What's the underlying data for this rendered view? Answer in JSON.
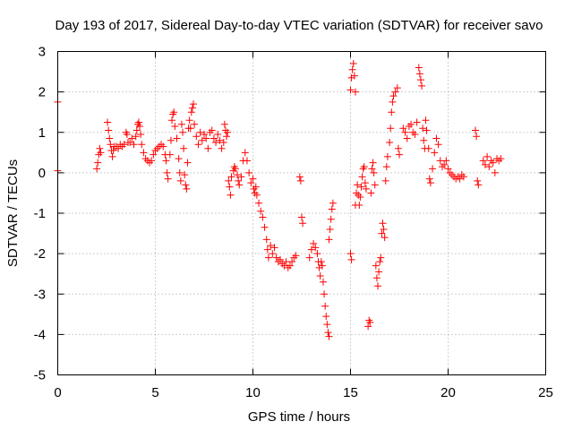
{
  "chart_data": {
    "type": "scatter",
    "title": "Day 193 of 2017, Sidereal Day-to-day VTEC variation (SDTVAR) for receiver savo",
    "xlabel": "GPS time / hours",
    "ylabel": "SDTVAR / TECUs",
    "xlim": [
      0,
      25
    ],
    "ylim": [
      -5,
      3
    ],
    "xticks": [
      0,
      5,
      10,
      15,
      20,
      25
    ],
    "xtick_labels": [
      "0",
      "5",
      "10",
      "15",
      "20",
      "25"
    ],
    "yticks": [
      -5,
      -4,
      -3,
      -2,
      -1,
      0,
      1,
      2,
      3
    ],
    "ytick_labels": [
      "-5",
      "-4",
      "-3",
      "-2",
      "-1",
      "0",
      "1",
      "2",
      "3"
    ],
    "grid": true,
    "marker": "+",
    "series": [
      {
        "name": "SDTVAR",
        "color": "#ff0000",
        "points": [
          [
            0.0,
            1.75
          ],
          [
            0.0,
            0.05
          ],
          [
            2.0,
            0.1
          ],
          [
            2.05,
            0.25
          ],
          [
            2.1,
            0.45
          ],
          [
            2.15,
            0.6
          ],
          [
            2.2,
            0.5
          ],
          [
            2.55,
            1.25
          ],
          [
            2.6,
            1.05
          ],
          [
            2.65,
            0.85
          ],
          [
            2.7,
            0.7
          ],
          [
            2.75,
            0.55
          ],
          [
            2.8,
            0.4
          ],
          [
            2.85,
            0.55
          ],
          [
            2.9,
            0.65
          ],
          [
            3.0,
            0.65
          ],
          [
            3.1,
            0.6
          ],
          [
            3.2,
            0.7
          ],
          [
            3.3,
            0.65
          ],
          [
            3.4,
            0.7
          ],
          [
            3.5,
            1.0
          ],
          [
            3.55,
            0.95
          ],
          [
            3.6,
            0.75
          ],
          [
            3.7,
            0.75
          ],
          [
            3.8,
            0.85
          ],
          [
            3.9,
            0.7
          ],
          [
            4.0,
            0.9
          ],
          [
            4.05,
            1.05
          ],
          [
            4.1,
            1.2
          ],
          [
            4.15,
            1.25
          ],
          [
            4.2,
            1.15
          ],
          [
            4.25,
            0.95
          ],
          [
            4.3,
            0.7
          ],
          [
            4.4,
            0.5
          ],
          [
            4.5,
            0.35
          ],
          [
            4.6,
            0.3
          ],
          [
            4.7,
            0.25
          ],
          [
            4.8,
            0.3
          ],
          [
            4.9,
            0.45
          ],
          [
            5.0,
            0.55
          ],
          [
            5.1,
            0.6
          ],
          [
            5.2,
            0.65
          ],
          [
            5.3,
            0.7
          ],
          [
            5.4,
            0.65
          ],
          [
            5.5,
            0.45
          ],
          [
            5.55,
            0.3
          ],
          [
            5.6,
            0.0
          ],
          [
            5.65,
            -0.15
          ],
          [
            5.75,
            0.45
          ],
          [
            5.8,
            0.8
          ],
          [
            5.85,
            1.3
          ],
          [
            5.9,
            1.45
          ],
          [
            5.95,
            1.5
          ],
          [
            6.0,
            1.15
          ],
          [
            6.1,
            0.85
          ],
          [
            6.2,
            0.35
          ],
          [
            6.25,
            0.0
          ],
          [
            6.3,
            -0.2
          ],
          [
            6.35,
            1.2
          ],
          [
            6.4,
            1.0
          ],
          [
            6.45,
            0.6
          ],
          [
            6.5,
            -0.05
          ],
          [
            6.55,
            -0.3
          ],
          [
            6.6,
            -0.4
          ],
          [
            6.65,
            0.25
          ],
          [
            6.7,
            1.1
          ],
          [
            6.75,
            1.3
          ],
          [
            6.8,
            1.1
          ],
          [
            6.85,
            1.5
          ],
          [
            6.9,
            1.6
          ],
          [
            6.95,
            1.7
          ],
          [
            7.0,
            1.2
          ],
          [
            7.1,
            0.9
          ],
          [
            7.2,
            0.7
          ],
          [
            7.3,
            1.0
          ],
          [
            7.4,
            0.8
          ],
          [
            7.5,
            0.95
          ],
          [
            7.6,
            0.85
          ],
          [
            7.7,
            0.6
          ],
          [
            7.8,
            1.0
          ],
          [
            7.9,
            1.05
          ],
          [
            8.0,
            0.85
          ],
          [
            8.1,
            0.75
          ],
          [
            8.2,
            0.95
          ],
          [
            8.3,
            0.8
          ],
          [
            8.4,
            0.6
          ],
          [
            8.5,
            0.75
          ],
          [
            8.55,
            1.2
          ],
          [
            8.6,
            1.05
          ],
          [
            8.65,
            0.9
          ],
          [
            8.7,
            1.0
          ],
          [
            8.75,
            -0.2
          ],
          [
            8.8,
            -0.35
          ],
          [
            8.85,
            -0.55
          ],
          [
            8.9,
            -0.1
          ],
          [
            9.0,
            0.05
          ],
          [
            9.05,
            0.15
          ],
          [
            9.1,
            0.1
          ],
          [
            9.2,
            -0.05
          ],
          [
            9.25,
            -0.2
          ],
          [
            9.3,
            -0.3
          ],
          [
            9.4,
            -0.1
          ],
          [
            9.5,
            0.3
          ],
          [
            9.6,
            0.5
          ],
          [
            9.7,
            0.3
          ],
          [
            9.8,
            0.0
          ],
          [
            9.9,
            -0.25
          ],
          [
            10.0,
            -0.15
          ],
          [
            10.05,
            -0.4
          ],
          [
            10.1,
            -0.5
          ],
          [
            10.15,
            -0.35
          ],
          [
            10.2,
            -0.55
          ],
          [
            10.3,
            -0.75
          ],
          [
            10.4,
            -0.95
          ],
          [
            10.5,
            -1.1
          ],
          [
            10.6,
            -1.35
          ],
          [
            10.7,
            -1.65
          ],
          [
            10.75,
            -1.9
          ],
          [
            10.8,
            -2.1
          ],
          [
            10.9,
            -1.8
          ],
          [
            11.0,
            -2.0
          ],
          [
            11.1,
            -1.85
          ],
          [
            11.2,
            -2.1
          ],
          [
            11.3,
            -2.2
          ],
          [
            11.4,
            -2.15
          ],
          [
            11.5,
            -2.25
          ],
          [
            11.6,
            -2.3
          ],
          [
            11.7,
            -2.2
          ],
          [
            11.8,
            -2.35
          ],
          [
            11.9,
            -2.3
          ],
          [
            12.0,
            -2.2
          ],
          [
            12.1,
            -2.1
          ],
          [
            12.2,
            -2.05
          ],
          [
            12.4,
            -0.1
          ],
          [
            12.45,
            -0.2
          ],
          [
            12.5,
            -1.1
          ],
          [
            12.55,
            -1.25
          ],
          [
            12.9,
            -2.1
          ],
          [
            13.0,
            -1.9
          ],
          [
            13.1,
            -1.75
          ],
          [
            13.2,
            -1.85
          ],
          [
            13.3,
            -2.0
          ],
          [
            13.35,
            -2.2
          ],
          [
            13.4,
            -2.35
          ],
          [
            13.45,
            -2.55
          ],
          [
            13.5,
            -2.2
          ],
          [
            13.55,
            -2.3
          ],
          [
            13.6,
            -2.7
          ],
          [
            13.65,
            -3.0
          ],
          [
            13.7,
            -3.3
          ],
          [
            13.75,
            -3.55
          ],
          [
            13.8,
            -3.75
          ],
          [
            13.85,
            -3.95
          ],
          [
            13.9,
            -4.05
          ],
          [
            13.9,
            -1.65
          ],
          [
            13.95,
            -1.4
          ],
          [
            14.0,
            -1.15
          ],
          [
            14.05,
            -0.9
          ],
          [
            14.1,
            -0.75
          ],
          [
            15.0,
            2.05
          ],
          [
            15.05,
            2.35
          ],
          [
            15.1,
            2.55
          ],
          [
            15.15,
            2.7
          ],
          [
            15.2,
            2.4
          ],
          [
            15.25,
            2.0
          ],
          [
            15.0,
            -2.0
          ],
          [
            15.05,
            -2.15
          ],
          [
            15.25,
            -0.8
          ],
          [
            15.3,
            -0.5
          ],
          [
            15.35,
            -0.3
          ],
          [
            15.4,
            -0.55
          ],
          [
            15.45,
            -0.8
          ],
          [
            15.5,
            -0.6
          ],
          [
            15.55,
            -0.35
          ],
          [
            15.6,
            -0.1
          ],
          [
            15.65,
            0.1
          ],
          [
            15.7,
            0.15
          ],
          [
            15.75,
            -0.25
          ],
          [
            15.8,
            -0.4
          ],
          [
            15.9,
            -3.8
          ],
          [
            15.95,
            -3.65
          ],
          [
            16.0,
            -3.7
          ],
          [
            16.05,
            -0.5
          ],
          [
            16.1,
            0.1
          ],
          [
            16.15,
            0.25
          ],
          [
            16.2,
            0.0
          ],
          [
            16.25,
            -0.3
          ],
          [
            16.3,
            -2.3
          ],
          [
            16.35,
            -2.6
          ],
          [
            16.4,
            -2.8
          ],
          [
            16.45,
            -2.45
          ],
          [
            16.5,
            -2.2
          ],
          [
            16.55,
            -2.1
          ],
          [
            16.6,
            -1.5
          ],
          [
            16.65,
            -1.25
          ],
          [
            16.7,
            -1.4
          ],
          [
            16.75,
            -1.6
          ],
          [
            16.8,
            -0.2
          ],
          [
            16.85,
            0.15
          ],
          [
            16.9,
            0.4
          ],
          [
            17.0,
            0.75
          ],
          [
            17.05,
            1.1
          ],
          [
            17.1,
            1.5
          ],
          [
            17.15,
            1.75
          ],
          [
            17.2,
            1.9
          ],
          [
            17.3,
            2.0
          ],
          [
            17.4,
            2.1
          ],
          [
            17.45,
            0.6
          ],
          [
            17.5,
            0.45
          ],
          [
            17.7,
            1.1
          ],
          [
            17.8,
            1.0
          ],
          [
            17.9,
            0.85
          ],
          [
            18.0,
            1.15
          ],
          [
            18.1,
            1.2
          ],
          [
            18.2,
            1.0
          ],
          [
            18.3,
            0.95
          ],
          [
            18.4,
            1.25
          ],
          [
            18.5,
            2.6
          ],
          [
            18.55,
            2.45
          ],
          [
            18.6,
            2.3
          ],
          [
            18.65,
            2.15
          ],
          [
            18.7,
            1.1
          ],
          [
            18.75,
            0.8
          ],
          [
            18.8,
            0.6
          ],
          [
            18.85,
            1.3
          ],
          [
            18.9,
            1.05
          ],
          [
            19.0,
            0.6
          ],
          [
            19.05,
            -0.15
          ],
          [
            19.1,
            -0.25
          ],
          [
            19.2,
            0.1
          ],
          [
            19.3,
            0.5
          ],
          [
            19.4,
            0.85
          ],
          [
            19.5,
            0.7
          ],
          [
            19.6,
            0.3
          ],
          [
            19.7,
            0.15
          ],
          [
            19.8,
            0.2
          ],
          [
            19.9,
            0.3
          ],
          [
            20.0,
            0.1
          ],
          [
            20.1,
            0.0
          ],
          [
            20.2,
            -0.05
          ],
          [
            20.3,
            -0.1
          ],
          [
            20.4,
            -0.15
          ],
          [
            20.5,
            -0.1
          ],
          [
            20.6,
            -0.15
          ],
          [
            20.7,
            -0.05
          ],
          [
            20.8,
            -0.1
          ],
          [
            21.4,
            1.05
          ],
          [
            21.45,
            0.9
          ],
          [
            21.5,
            -0.2
          ],
          [
            21.55,
            -0.3
          ],
          [
            21.8,
            0.3
          ],
          [
            21.9,
            0.2
          ],
          [
            22.0,
            0.4
          ],
          [
            22.1,
            0.15
          ],
          [
            22.2,
            0.3
          ],
          [
            22.3,
            0.25
          ],
          [
            22.4,
            0.0
          ],
          [
            22.5,
            0.35
          ],
          [
            22.6,
            0.3
          ],
          [
            22.7,
            0.35
          ]
        ]
      }
    ]
  }
}
